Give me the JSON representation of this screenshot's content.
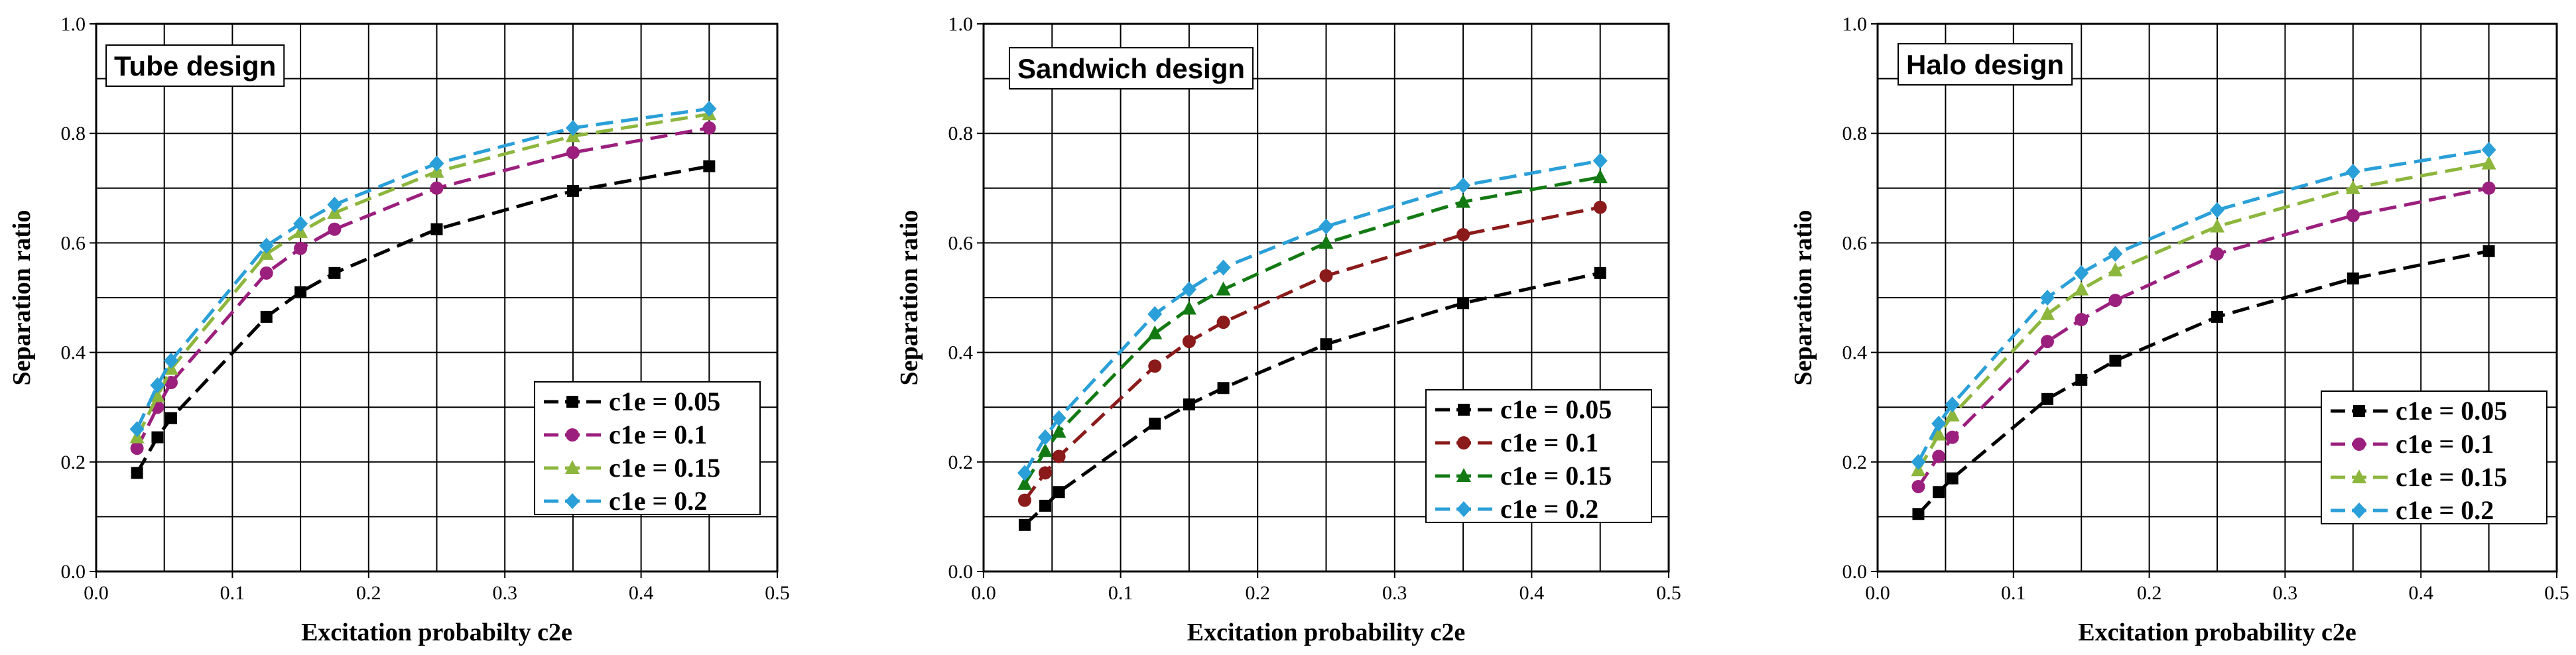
{
  "chart_data": [
    {
      "type": "line",
      "title": "Tube design",
      "xlabel": "Excitation probabilty c2e",
      "ylabel": "Separation ratio",
      "xlim": [
        0,
        0.5
      ],
      "ylim": [
        0,
        1.0
      ],
      "xticks": [
        "0.0",
        "0.1",
        "0.2",
        "0.3",
        "0.4",
        "0.5"
      ],
      "yticks": [
        "0.0",
        "0.2",
        "0.4",
        "0.6",
        "0.8",
        "1.0"
      ],
      "grid": true,
      "legend_position": "bottom-right",
      "x": [
        0.03,
        0.045,
        0.055,
        0.125,
        0.15,
        0.175,
        0.25,
        0.35,
        0.45
      ],
      "series": [
        {
          "name": "c1e = 0.05",
          "color": "#000000",
          "marker": "square",
          "values": [
            0.18,
            0.245,
            0.28,
            0.465,
            0.51,
            0.545,
            0.625,
            0.695,
            0.74
          ]
        },
        {
          "name": "c1e = 0.1",
          "color": "#9b1f7d",
          "marker": "circle",
          "values": [
            0.225,
            0.3,
            0.345,
            0.545,
            0.59,
            0.625,
            0.7,
            0.765,
            0.81
          ]
        },
        {
          "name": "c1e = 0.15",
          "color": "#8db63d",
          "marker": "triangle",
          "values": [
            0.245,
            0.32,
            0.37,
            0.58,
            0.62,
            0.655,
            0.73,
            0.795,
            0.835
          ]
        },
        {
          "name": "c1e = 0.2",
          "color": "#2a9fd8",
          "marker": "diamond",
          "values": [
            0.26,
            0.34,
            0.385,
            0.595,
            0.635,
            0.67,
            0.745,
            0.81,
            0.845
          ]
        }
      ]
    },
    {
      "type": "line",
      "title": "Sandwich design",
      "xlabel": "Excitation probability c2e",
      "ylabel": "Separation ratio",
      "xlim": [
        0,
        0.5
      ],
      "ylim": [
        0,
        1.0
      ],
      "xticks": [
        "0.0",
        "0.1",
        "0.2",
        "0.3",
        "0.4",
        "0.5"
      ],
      "yticks": [
        "0.0",
        "0.2",
        "0.4",
        "0.6",
        "0.8",
        "1.0"
      ],
      "grid": true,
      "legend_position": "bottom-right",
      "x": [
        0.03,
        0.045,
        0.055,
        0.125,
        0.15,
        0.175,
        0.25,
        0.35,
        0.45
      ],
      "series": [
        {
          "name": "c1e = 0.05",
          "color": "#000000",
          "marker": "square",
          "values": [
            0.085,
            0.12,
            0.145,
            0.27,
            0.305,
            0.335,
            0.415,
            0.49,
            0.545
          ]
        },
        {
          "name": "c1e = 0.1",
          "color": "#8b1a1a",
          "marker": "circle",
          "values": [
            0.13,
            0.18,
            0.21,
            0.375,
            0.42,
            0.455,
            0.54,
            0.615,
            0.665
          ]
        },
        {
          "name": "c1e = 0.15",
          "color": "#137a13",
          "marker": "triangle",
          "values": [
            0.16,
            0.22,
            0.255,
            0.435,
            0.48,
            0.515,
            0.6,
            0.675,
            0.72
          ]
        },
        {
          "name": "c1e = 0.2",
          "color": "#2a9fd8",
          "marker": "diamond",
          "values": [
            0.18,
            0.245,
            0.28,
            0.47,
            0.515,
            0.555,
            0.63,
            0.705,
            0.75
          ]
        }
      ]
    },
    {
      "type": "line",
      "title": "Halo design",
      "xlabel": "Excitation probability c2e",
      "ylabel": "Separation ratio",
      "xlim": [
        0,
        0.5
      ],
      "ylim": [
        0,
        1.0
      ],
      "xticks": [
        "0.0",
        "0.1",
        "0.2",
        "0.3",
        "0.4",
        "0.5"
      ],
      "yticks": [
        "0.0",
        "0.2",
        "0.4",
        "0.6",
        "0.8",
        "1.0"
      ],
      "grid": true,
      "legend_position": "bottom-right",
      "x": [
        0.03,
        0.045,
        0.055,
        0.125,
        0.15,
        0.175,
        0.25,
        0.35,
        0.45
      ],
      "series": [
        {
          "name": "c1e = 0.05",
          "color": "#000000",
          "marker": "square",
          "values": [
            0.105,
            0.145,
            0.17,
            0.315,
            0.35,
            0.385,
            0.465,
            0.535,
            0.585
          ]
        },
        {
          "name": "c1e = 0.1",
          "color": "#9b1f7d",
          "marker": "circle",
          "values": [
            0.155,
            0.21,
            0.245,
            0.42,
            0.46,
            0.495,
            0.58,
            0.65,
            0.7
          ]
        },
        {
          "name": "c1e = 0.15",
          "color": "#8db63d",
          "marker": "triangle",
          "values": [
            0.185,
            0.25,
            0.285,
            0.47,
            0.515,
            0.55,
            0.63,
            0.7,
            0.745
          ]
        },
        {
          "name": "c1e = 0.2",
          "color": "#2a9fd8",
          "marker": "diamond",
          "values": [
            0.2,
            0.27,
            0.305,
            0.5,
            0.545,
            0.58,
            0.66,
            0.73,
            0.77
          ]
        }
      ]
    }
  ]
}
